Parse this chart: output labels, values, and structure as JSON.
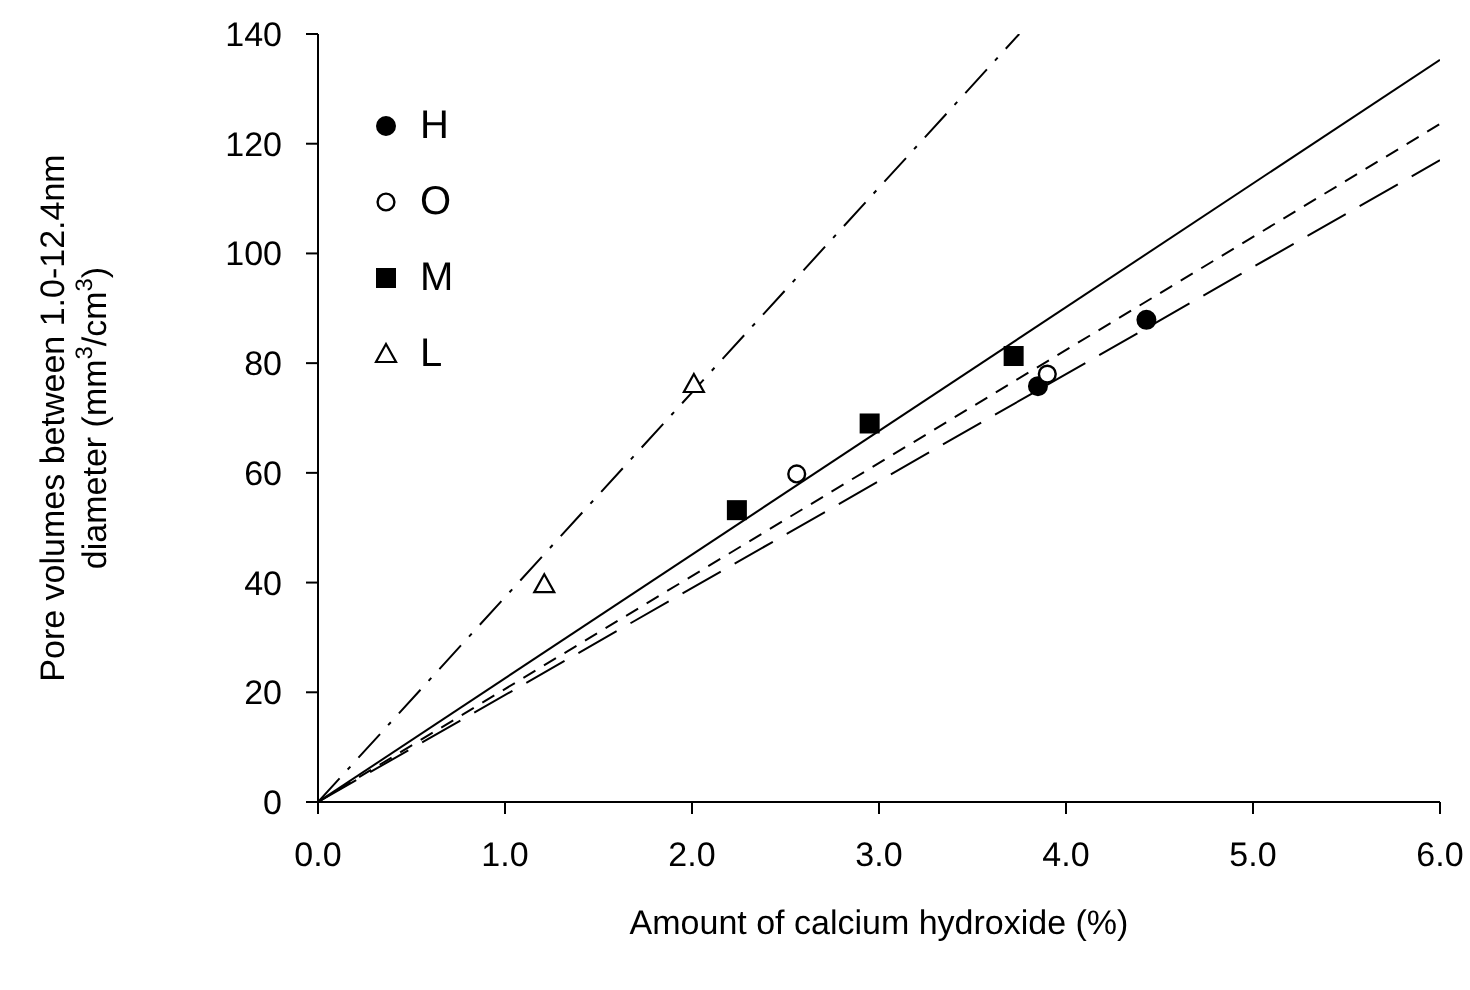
{
  "chart_data": {
    "type": "scatter",
    "xlabel": "Amount of calcium hydroxide (%)",
    "ylabel": "Pore volumes between 1.0-12.4nm diameter (mm$^{3}$/cm$^{3}$)",
    "xlim": [
      0,
      6
    ],
    "ylim": [
      0,
      140
    ],
    "xticks": [
      {
        "value": 0,
        "label": "0.0"
      },
      {
        "value": 1,
        "label": "1.0"
      },
      {
        "value": 2,
        "label": "2.0"
      },
      {
        "value": 3,
        "label": "3.0"
      },
      {
        "value": 4,
        "label": "4.0"
      },
      {
        "value": 5,
        "label": "5.0"
      },
      {
        "value": 6,
        "label": "6.0"
      }
    ],
    "yticks": [
      0,
      20,
      40,
      60,
      80,
      100,
      120,
      140
    ],
    "grid": false,
    "legend": "top left",
    "series": [
      {
        "name": "H",
        "marker": "circle",
        "color": "#000000",
        "x": [
          3.85,
          4.43
        ],
        "values": [
          75.8,
          87.9
        ]
      },
      {
        "name": "O",
        "marker": "circle-open",
        "color": "#000000",
        "x": [
          2.56,
          3.9
        ],
        "values": [
          59.8,
          78
        ]
      },
      {
        "name": "M",
        "marker": "square",
        "color": "#000000",
        "x": [
          2.24,
          2.95,
          3.72
        ],
        "values": [
          53.2,
          69,
          81.3
        ]
      },
      {
        "name": "L",
        "marker": "triangle-open",
        "color": "#000000",
        "x": [
          1.21,
          2.01
        ],
        "values": [
          39.7,
          76.2
        ]
      },
      {
        "type": "line",
        "line_style": "longdash",
        "marker": "none",
        "color": "#000000",
        "x": [
          0,
          6
        ],
        "values": [
          0,
          117
        ]
      },
      {
        "type": "line",
        "line_style": "dashed",
        "marker": "none",
        "color": "#000000",
        "x": [
          0,
          6
        ],
        "values": [
          0,
          123.6
        ]
      },
      {
        "type": "line",
        "line_style": "solid",
        "marker": "none",
        "color": "#000000",
        "x": [
          0,
          6
        ],
        "values": [
          0,
          135.3
        ]
      },
      {
        "type": "line",
        "line_style": "dashdot",
        "marker": "none",
        "color": "#000000",
        "x": [
          0,
          3.75
        ],
        "values": [
          0,
          140
        ]
      }
    ]
  }
}
